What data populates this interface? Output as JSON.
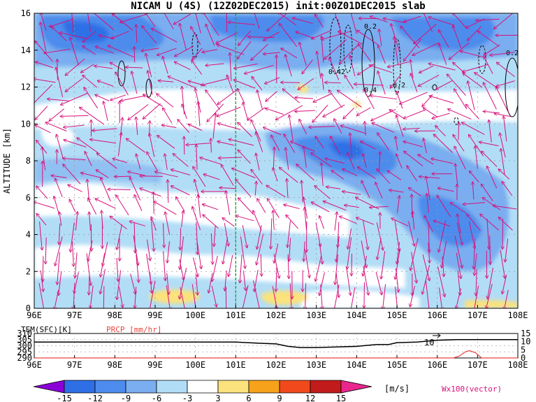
{
  "title": "NICAM U (4S) (12Z02DEC2015) init:00Z01DEC2015 slab",
  "chart_data": [
    {
      "type": "heatmap",
      "name": "main",
      "ylabel": "ALTITUDE [km]",
      "x_ticks": [
        "96E",
        "97E",
        "98E",
        "99E",
        "100E",
        "101E",
        "102E",
        "103E",
        "104E",
        "105E",
        "106E",
        "107E",
        "108E"
      ],
      "xlim": [
        96,
        108
      ],
      "y_ticks": [
        "0",
        "2",
        "4",
        "6",
        "8",
        "10",
        "12",
        "14",
        "16"
      ],
      "ylim": [
        0,
        16
      ],
      "marker_line_x": 101,
      "contour_labels": [
        "0.2",
        "0.4",
        "2",
        "0.4",
        "-0.2",
        "0.2"
      ],
      "colorbar": {
        "levels": [
          "-15",
          "-12",
          "-9",
          "-6",
          "-3",
          "3",
          "6",
          "9",
          "12",
          "15"
        ],
        "unit": "[m/s]",
        "colors": [
          "#8a00d6",
          "#2f6fe6",
          "#4d8cec",
          "#7aaef0",
          "#b2ddf6",
          "#ffffff",
          "#fbe27c",
          "#f7a21b",
          "#f04a1c",
          "#c21b1b",
          "#e8268e"
        ]
      },
      "vector_label": "Wx100(vector)",
      "colors": {
        "vector": "#d8107c",
        "marker_line": "#1faa2b",
        "grid": "#9a9a9a"
      }
    },
    {
      "type": "line",
      "name": "surface",
      "left_label": "TEM(SFC)[K]",
      "right_label": "PRCP [mm/hr]",
      "left_ticks": [
        "310",
        "305",
        "300",
        "295",
        "290"
      ],
      "left_range": [
        290,
        310
      ],
      "right_ticks": [
        "15",
        "10",
        "5",
        "0"
      ],
      "right_range": [
        0,
        15
      ],
      "x_ticks": [
        "96E",
        "97E",
        "98E",
        "99E",
        "100E",
        "101E",
        "102E",
        "103E",
        "104E",
        "105E",
        "106E",
        "107E",
        "108E"
      ],
      "annotation": "10",
      "series": [
        {
          "x": [
            96,
            98.5,
            99.5,
            100.5,
            101,
            101.3,
            101.6,
            102,
            102.3,
            102.6,
            103.0,
            103.5,
            104.0,
            104.5,
            104.8,
            105.0,
            105.5,
            106.0,
            106.5,
            106.7,
            108
          ],
          "y": [
            303,
            303,
            303,
            303,
            303,
            302.5,
            302,
            301.5,
            299.5,
            298.5,
            298.5,
            299,
            299.5,
            301,
            301,
            302.5,
            303,
            304.5,
            305,
            305,
            305
          ]
        },
        {
          "x": [
            96,
            106.4,
            106.55,
            106.7,
            106.8,
            106.95,
            107.1,
            108
          ],
          "y": [
            0,
            0,
            1.2,
            3.8,
            4.5,
            3.2,
            0,
            0
          ]
        }
      ],
      "colors": {
        "temperature": "#000000",
        "precip": "#e8453c"
      }
    }
  ]
}
